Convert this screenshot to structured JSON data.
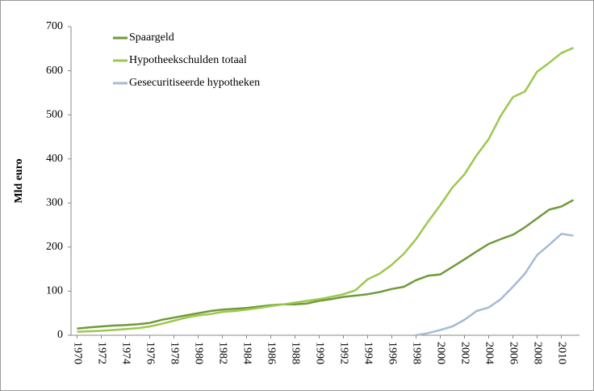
{
  "chart_data": {
    "type": "line",
    "ylabel": "Mld euro",
    "x": [
      1970,
      1971,
      1972,
      1973,
      1974,
      1975,
      1976,
      1977,
      1978,
      1979,
      1980,
      1981,
      1982,
      1983,
      1984,
      1985,
      1986,
      1987,
      1988,
      1989,
      1990,
      1991,
      1992,
      1993,
      1994,
      1995,
      1996,
      1997,
      1998,
      1999,
      2000,
      2001,
      2002,
      2003,
      2004,
      2005,
      2006,
      2007,
      2008,
      2009,
      2010,
      2011
    ],
    "xlim": [
      1969.5,
      2011.5
    ],
    "xticks": [
      1970,
      1972,
      1974,
      1976,
      1978,
      1980,
      1982,
      1984,
      1986,
      1988,
      1990,
      1992,
      1994,
      1996,
      1998,
      2000,
      2002,
      2004,
      2006,
      2008,
      2010
    ],
    "ylim": [
      0,
      700
    ],
    "yticks": [
      0,
      100,
      200,
      300,
      400,
      500,
      600,
      700
    ],
    "grid": false,
    "series": [
      {
        "name": "Spaargeld",
        "color": "#6f9a3a",
        "values": [
          15,
          18,
          20,
          22,
          23,
          25,
          28,
          35,
          40,
          45,
          50,
          55,
          58,
          60,
          62,
          65,
          68,
          70,
          70,
          72,
          78,
          82,
          87,
          90,
          93,
          98,
          105,
          110,
          125,
          135,
          138,
          155,
          172,
          190,
          207,
          218,
          228,
          245,
          265,
          285,
          292,
          307
        ]
      },
      {
        "name": "Hypotheekschulden totaal",
        "color": "#9cc84e",
        "values": [
          8,
          9,
          10,
          12,
          14,
          16,
          20,
          26,
          33,
          40,
          45,
          48,
          53,
          55,
          58,
          62,
          66,
          70,
          74,
          78,
          82,
          87,
          93,
          102,
          127,
          140,
          160,
          185,
          218,
          258,
          295,
          335,
          365,
          408,
          445,
          498,
          540,
          553,
          598,
          618,
          640,
          652
        ]
      },
      {
        "name": "Gesecuritiseerde hypotheken",
        "color": "#a7b9d6",
        "values": [
          null,
          null,
          null,
          null,
          null,
          null,
          null,
          null,
          null,
          null,
          null,
          null,
          null,
          null,
          null,
          null,
          null,
          null,
          null,
          null,
          null,
          null,
          null,
          null,
          null,
          null,
          null,
          null,
          0,
          5,
          12,
          20,
          35,
          55,
          63,
          82,
          110,
          140,
          182,
          205,
          230,
          226
        ]
      }
    ]
  }
}
